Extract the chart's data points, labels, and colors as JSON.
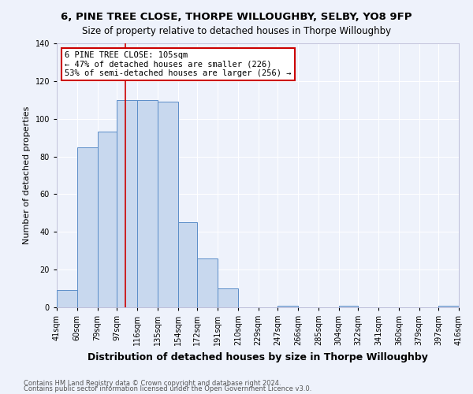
{
  "title": "6, PINE TREE CLOSE, THORPE WILLOUGHBY, SELBY, YO8 9FP",
  "subtitle": "Size of property relative to detached houses in Thorpe Willoughby",
  "xlabel": "Distribution of detached houses by size in Thorpe Willoughby",
  "ylabel": "Number of detached properties",
  "bin_edges": [
    41,
    60,
    79,
    97,
    116,
    135,
    154,
    172,
    191,
    210,
    229,
    247,
    266,
    285,
    304,
    322,
    341,
    360,
    379,
    397,
    416
  ],
  "bar_heights": [
    9,
    85,
    93,
    110,
    110,
    109,
    45,
    26,
    10,
    0,
    0,
    1,
    0,
    0,
    1,
    0,
    0,
    0,
    0,
    1
  ],
  "bar_color": "#c8d8ee",
  "bar_edge_color": "#5b8dc8",
  "vline_x": 105,
  "vline_color": "#cc0000",
  "annotation_line1": "6 PINE TREE CLOSE: 105sqm",
  "annotation_line2": "← 47% of detached houses are smaller (226)",
  "annotation_line3": "53% of semi-detached houses are larger (256) →",
  "annotation_box_color": "#cc0000",
  "ylim": [
    0,
    140
  ],
  "yticks": [
    0,
    20,
    40,
    60,
    80,
    100,
    120,
    140
  ],
  "footnote1": "Contains HM Land Registry data © Crown copyright and database right 2024.",
  "footnote2": "Contains public sector information licensed under the Open Government Licence v3.0.",
  "background_color": "#eef2fb",
  "plot_bg_color": "#eef2fb",
  "grid_color": "#ffffff",
  "title_fontsize": 9.5,
  "subtitle_fontsize": 8.5,
  "xlabel_fontsize": 9,
  "ylabel_fontsize": 8,
  "tick_fontsize": 7,
  "annotation_fontsize": 7.5,
  "footnote_fontsize": 6
}
